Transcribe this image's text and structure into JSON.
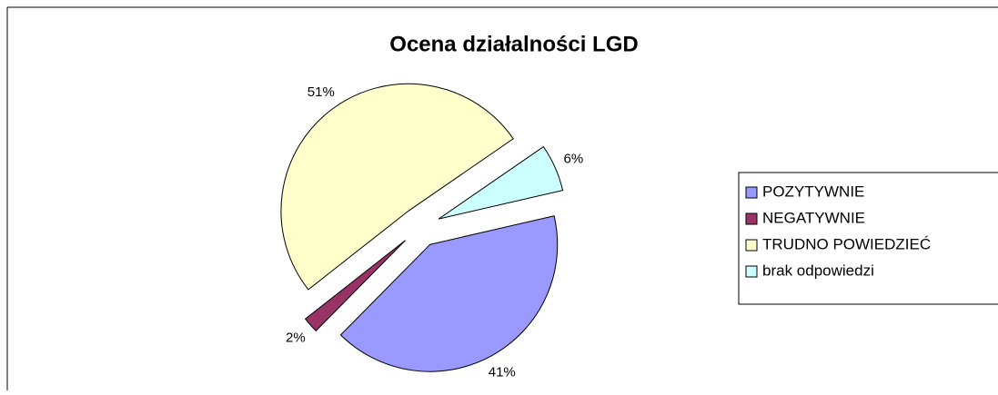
{
  "chart_data": {
    "type": "pie",
    "title": "Ocena działalności LGD",
    "categories": [
      "POZYTYWNIE",
      "NEGATYWNIE",
      "TRUDNO POWIEDZIEĆ",
      "brak odpowiedzi"
    ],
    "values": [
      41,
      2,
      51,
      6
    ],
    "value_labels": [
      "41%",
      "2%",
      "51%",
      "6%"
    ],
    "colors": [
      "#9999ff",
      "#993366",
      "#ffffcc",
      "#ccffff"
    ],
    "legend": "right"
  }
}
